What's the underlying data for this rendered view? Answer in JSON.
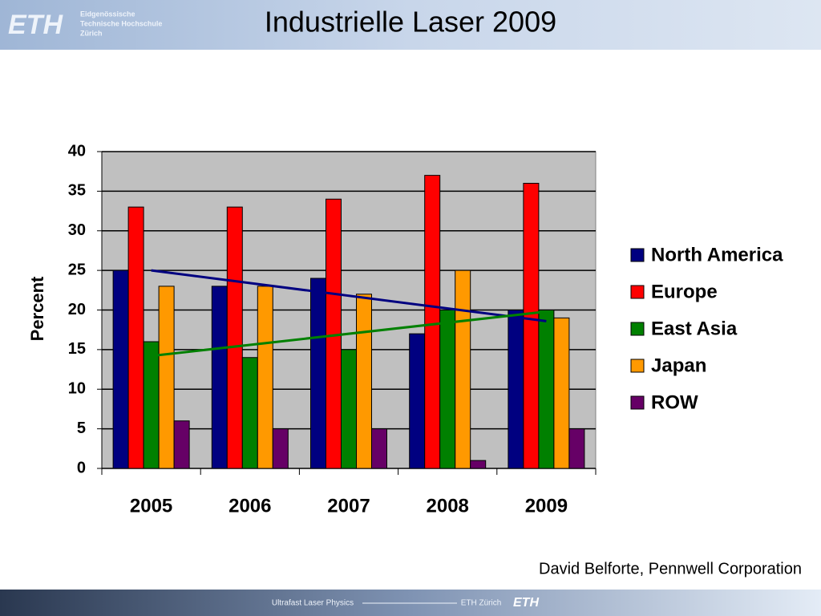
{
  "header": {
    "logo": "ETH",
    "institution": [
      "Eidgenössische",
      "Technische Hochschule",
      "Zürich"
    ]
  },
  "chart_data": {
    "type": "bar",
    "title": "Industrielle Laser 2009",
    "y_label": "Percent",
    "categories": [
      "2005",
      "2006",
      "2007",
      "2008",
      "2009"
    ],
    "series": [
      {
        "name": "North America",
        "color": "#000080",
        "values": [
          25,
          23,
          24,
          17,
          20
        ],
        "trendline": true
      },
      {
        "name": "Europe",
        "color": "#ff0000",
        "values": [
          33,
          33,
          34,
          37,
          36
        ]
      },
      {
        "name": "East Asia",
        "color": "#008000",
        "values": [
          16,
          14,
          15,
          20,
          20
        ],
        "trendline": true
      },
      {
        "name": "Japan",
        "color": "#ff9900",
        "values": [
          23,
          23,
          22,
          25,
          19
        ]
      },
      {
        "name": "ROW",
        "color": "#660066",
        "values": [
          6,
          5,
          5,
          1,
          5
        ]
      }
    ],
    "ylim": [
      0,
      40
    ],
    "yticks": [
      0,
      5,
      10,
      15,
      20,
      25,
      30,
      35,
      40
    ],
    "grid": true,
    "legend": "right",
    "source": "David Belforte, Pennwell Corporation"
  },
  "footer": {
    "course": "Ultrafast Laser Physics",
    "place": "ETH Zürich",
    "logo": "ETH"
  }
}
